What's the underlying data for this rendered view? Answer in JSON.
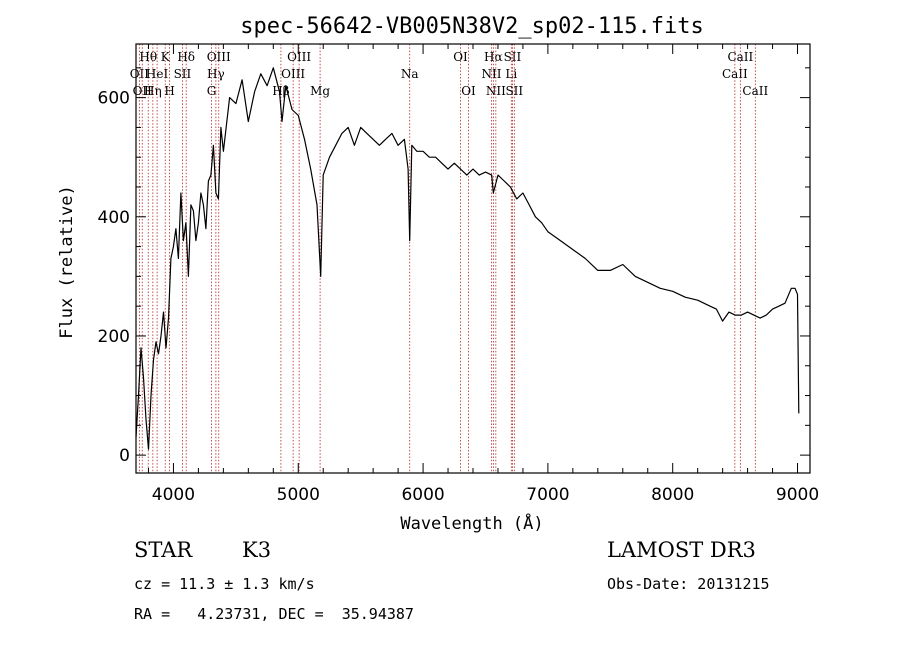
{
  "chart_data": {
    "type": "line",
    "title": "spec-56642-VB005N38V2_sp02-115.fits",
    "xlabel": "Wavelength (Å)",
    "ylabel": "Flux (relative)",
    "xlim": [
      3700,
      9100
    ],
    "ylim": [
      -30,
      690
    ],
    "xticks": [
      4000,
      5000,
      6000,
      7000,
      8000,
      9000
    ],
    "yticks": [
      0,
      200,
      400,
      600
    ],
    "line_color": "#000000",
    "marker_color": "#b22222",
    "series": [
      {
        "name": "flux",
        "x": [
          3700,
          3720,
          3740,
          3760,
          3780,
          3800,
          3820,
          3840,
          3860,
          3880,
          3900,
          3920,
          3940,
          3960,
          3980,
          4000,
          4020,
          4040,
          4060,
          4080,
          4100,
          4120,
          4140,
          4160,
          4180,
          4200,
          4220,
          4240,
          4260,
          4280,
          4300,
          4320,
          4340,
          4360,
          4380,
          4400,
          4450,
          4500,
          4550,
          4600,
          4650,
          4700,
          4750,
          4800,
          4850,
          4870,
          4900,
          4950,
          5000,
          5050,
          5100,
          5150,
          5180,
          5200,
          5250,
          5300,
          5350,
          5400,
          5450,
          5500,
          5550,
          5600,
          5650,
          5700,
          5750,
          5800,
          5850,
          5880,
          5893,
          5910,
          5950,
          6000,
          6050,
          6100,
          6150,
          6200,
          6250,
          6300,
          6350,
          6400,
          6450,
          6500,
          6550,
          6563,
          6600,
          6650,
          6700,
          6750,
          6800,
          6850,
          6900,
          6950,
          7000,
          7100,
          7200,
          7300,
          7400,
          7500,
          7600,
          7700,
          7800,
          7900,
          8000,
          8100,
          8200,
          8300,
          8350,
          8400,
          8450,
          8500,
          8550,
          8600,
          8650,
          8700,
          8750,
          8800,
          8850,
          8900,
          8950,
          8980,
          9000,
          9010
        ],
        "values": [
          30,
          100,
          180,
          130,
          60,
          10,
          100,
          160,
          190,
          170,
          200,
          240,
          180,
          230,
          330,
          350,
          380,
          330,
          440,
          360,
          390,
          300,
          420,
          410,
          360,
          390,
          440,
          420,
          380,
          460,
          470,
          520,
          440,
          430,
          550,
          510,
          600,
          590,
          630,
          560,
          610,
          640,
          620,
          650,
          610,
          560,
          620,
          580,
          570,
          530,
          480,
          420,
          300,
          470,
          500,
          520,
          540,
          550,
          520,
          550,
          540,
          530,
          520,
          530,
          540,
          520,
          530,
          480,
          360,
          520,
          510,
          510,
          500,
          500,
          490,
          480,
          490,
          480,
          470,
          480,
          470,
          475,
          470,
          440,
          470,
          460,
          450,
          430,
          440,
          420,
          400,
          390,
          375,
          360,
          345,
          330,
          310,
          310,
          320,
          300,
          290,
          280,
          275,
          265,
          260,
          250,
          245,
          225,
          240,
          235,
          235,
          240,
          235,
          230,
          235,
          245,
          250,
          255,
          280,
          280,
          270,
          70
        ]
      }
    ],
    "line_markers": [
      {
        "wavelength": 3727,
        "label": "OII",
        "row": 2
      },
      {
        "wavelength": 3750,
        "label": "OII",
        "row": 3
      },
      {
        "wavelength": 3798,
        "label": "Hθ",
        "row": 1
      },
      {
        "wavelength": 3835,
        "label": "Hη",
        "row": 3
      },
      {
        "wavelength": 3869,
        "label": "HeI",
        "row": 2
      },
      {
        "wavelength": 3934,
        "label": "K",
        "row": 1
      },
      {
        "wavelength": 3969,
        "label": "H",
        "row": 3
      },
      {
        "wavelength": 4072,
        "label": "SII",
        "row": 2
      },
      {
        "wavelength": 4102,
        "label": "Hδ",
        "row": 1
      },
      {
        "wavelength": 4305,
        "label": "G",
        "row": 3
      },
      {
        "wavelength": 4340,
        "label": "Hγ",
        "row": 2
      },
      {
        "wavelength": 4363,
        "label": "OIII",
        "row": 1
      },
      {
        "wavelength": 4861,
        "label": "Hβ",
        "row": 3
      },
      {
        "wavelength": 4959,
        "label": "OIII",
        "row": 2
      },
      {
        "wavelength": 5007,
        "label": "OIII",
        "row": 1
      },
      {
        "wavelength": 5175,
        "label": "Mg",
        "row": 3
      },
      {
        "wavelength": 5893,
        "label": "Na",
        "row": 2
      },
      {
        "wavelength": 6300,
        "label": "OI",
        "row": 1
      },
      {
        "wavelength": 6364,
        "label": "OI",
        "row": 3
      },
      {
        "wavelength": 6548,
        "label": "NII",
        "row": 2
      },
      {
        "wavelength": 6563,
        "label": "Hα",
        "row": 1
      },
      {
        "wavelength": 6583,
        "label": "NII",
        "row": 3
      },
      {
        "wavelength": 6707,
        "label": "Li",
        "row": 2
      },
      {
        "wavelength": 6716,
        "label": "SII",
        "row": 1
      },
      {
        "wavelength": 6731,
        "label": "SII",
        "row": 3
      },
      {
        "wavelength": 8498,
        "label": "CaII",
        "row": 2
      },
      {
        "wavelength": 8542,
        "label": "CaII",
        "row": 1
      },
      {
        "wavelength": 8662,
        "label": "CaII",
        "row": 3
      }
    ]
  },
  "info": {
    "object_class": "STAR",
    "subclass": "K3",
    "survey": "LAMOST DR3",
    "redshift_text": "cz = 11.3 ± 1.3 km/s",
    "obs_date_text": "Obs-Date: 20131215",
    "coords_text": "RA =   4.23731, DEC =  35.94387"
  }
}
